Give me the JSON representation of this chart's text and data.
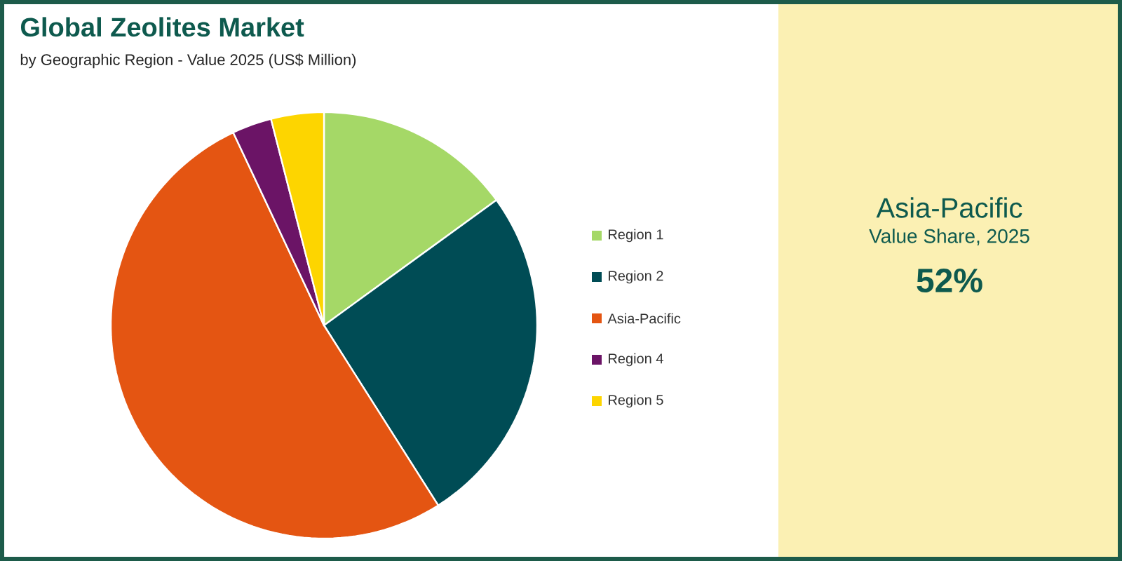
{
  "chart_data": {
    "type": "pie",
    "title": "Global Zeolites Market",
    "subtitle": "by Geographic Region - Value 2025 (US$ Million)",
    "categories": [
      "Region 1",
      "Region 2",
      "Asia-Pacific",
      "Region 4",
      "Region 5"
    ],
    "values": [
      15,
      26,
      52,
      3,
      4
    ],
    "colors": [
      "#a5d867",
      "#004c55",
      "#e45512",
      "#6b1466",
      "#fdd500"
    ],
    "legend": "right",
    "annotations": [
      "Asia-Pacific",
      "Value Share, 2025",
      "52%"
    ]
  }
}
